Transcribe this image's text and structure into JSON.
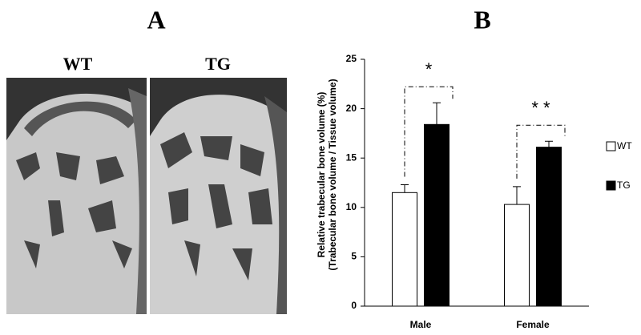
{
  "panel_labels": [
    "A",
    "B"
  ],
  "image_labels": [
    "WT",
    "TG"
  ],
  "chart_data": {
    "type": "bar",
    "y_label": [
      "Relative trabecular bone volume (%)",
      "(Trabecular bone volume / Tissue volume)"
    ],
    "categories": [
      "Male",
      "Female"
    ],
    "series": [
      {
        "name": "WT",
        "color": "#ffffff",
        "values": [
          11.5,
          10.3
        ],
        "errors": [
          0.8,
          1.8
        ]
      },
      {
        "name": "TG",
        "color": "#000000",
        "values": [
          18.4,
          16.1
        ],
        "errors": [
          2.2,
          0.6
        ]
      }
    ],
    "annotations": [
      "*",
      "* *"
    ],
    "ylim": [
      0,
      25
    ],
    "yticks": [
      0,
      5,
      10,
      15,
      20,
      25
    ],
    "grid": false,
    "legend": "right"
  }
}
